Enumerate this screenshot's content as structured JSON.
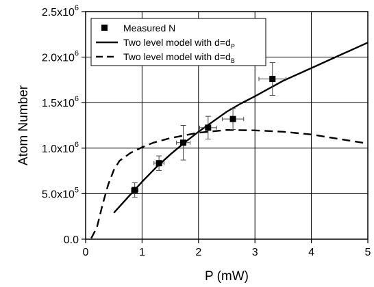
{
  "chart_data": {
    "type": "scatter",
    "xlabel": "P (mW)",
    "ylabel": "Atom Number",
    "xlim": [
      0,
      5
    ],
    "ylim": [
      0,
      2500000
    ],
    "grid": true,
    "legend_position": "top-left",
    "x_ticks": [
      0,
      1,
      2,
      3,
      4,
      5
    ],
    "x_tick_labels": [
      "0",
      "1",
      "2",
      "3",
      "4",
      "5"
    ],
    "y_ticks": [
      0,
      500000,
      1000000,
      1500000,
      2000000,
      2500000
    ],
    "y_tick_labels": [
      {
        "mantissa": "0.0",
        "exponent": ""
      },
      {
        "mantissa": "5.0x10",
        "exponent": "5"
      },
      {
        "mantissa": "1.0x10",
        "exponent": "6"
      },
      {
        "mantissa": "1.5x10",
        "exponent": "6"
      },
      {
        "mantissa": "2.0x10",
        "exponent": "6"
      },
      {
        "mantissa": "2.5x10",
        "exponent": "6"
      }
    ],
    "series": [
      {
        "name": "Measured N",
        "style": "markers",
        "marker": "square",
        "color": "#000000",
        "points": [
          {
            "x": 0.87,
            "y": 540000,
            "xerr": 0.06,
            "yerr": 80000
          },
          {
            "x": 1.3,
            "y": 835000,
            "xerr": 0.09,
            "yerr": 80000
          },
          {
            "x": 1.73,
            "y": 1060000,
            "xerr": 0.12,
            "yerr": 190000
          },
          {
            "x": 2.17,
            "y": 1225000,
            "xerr": 0.15,
            "yerr": 125000
          },
          {
            "x": 2.61,
            "y": 1320000,
            "xerr": 0.19,
            "yerr": 115000
          },
          {
            "x": 3.31,
            "y": 1760000,
            "xerr": 0.24,
            "yerr": 180000
          }
        ]
      },
      {
        "name": "Two level model with d=d",
        "name_subscript": "P",
        "style": "solid",
        "color": "#000000",
        "x": [
          0.5,
          0.75,
          1.0,
          1.25,
          1.5,
          1.75,
          2.0,
          2.25,
          2.5,
          2.75,
          3.0,
          3.5,
          4.0,
          4.5,
          5.0
        ],
        "y": [
          290000,
          460000,
          630000,
          790000,
          930000,
          1060000,
          1180000,
          1290000,
          1400000,
          1490000,
          1570000,
          1740000,
          1880000,
          2020000,
          2160000
        ]
      },
      {
        "name": "Two level model with d=d",
        "name_subscript": "B",
        "style": "dashed",
        "color": "#000000",
        "x": [
          0.1,
          0.2,
          0.3,
          0.4,
          0.5,
          0.6,
          0.8,
          1.0,
          1.2,
          1.5,
          2.0,
          2.5,
          3.0,
          3.5,
          4.0,
          4.5,
          5.0
        ],
        "y": [
          10000,
          130000,
          380000,
          600000,
          760000,
          860000,
          950000,
          1010000,
          1060000,
          1110000,
          1170000,
          1200000,
          1195000,
          1180000,
          1150000,
          1100000,
          1050000
        ]
      }
    ]
  }
}
